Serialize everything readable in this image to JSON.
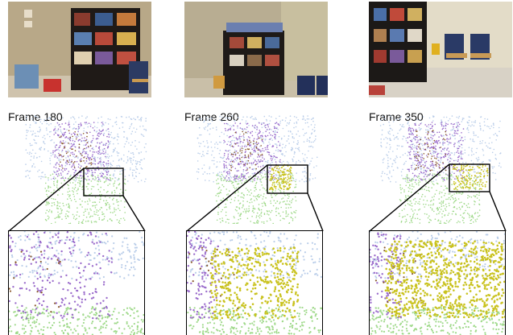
{
  "panels": [
    {
      "label": "Frame 180"
    },
    {
      "label": "Frame 260"
    },
    {
      "label": "Frame 350"
    }
  ],
  "colors": {
    "background_points": "#b9cde9",
    "furniture_points": "#9a6bcb",
    "floor_points": "#9fd98a",
    "new_object_points": "#c9c21e",
    "brown_points": "#8a5a2c"
  }
}
